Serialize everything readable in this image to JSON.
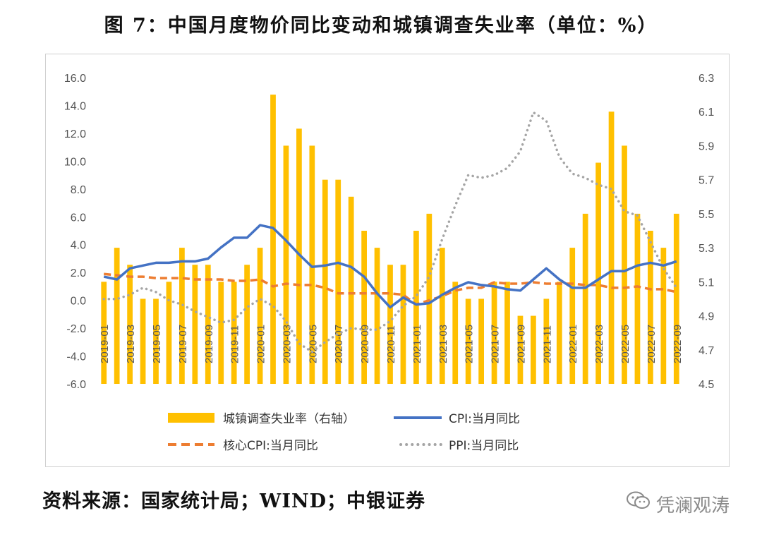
{
  "title": "图 7：中国月度物价同比变动和城镇调查失业率（单位：%）",
  "source": "资料来源：国家统计局；WIND；中银证券",
  "watermark": "凭澜观涛",
  "colors": {
    "unemployment": "#FFC000",
    "cpi": "#4472C4",
    "core_cpi": "#ED7D31",
    "ppi": "#A5A5A5"
  },
  "chart_data": {
    "type": "bar+line",
    "title": "图 7：中国月度物价同比变动和城镇调查失业率（单位：%）",
    "x": [
      "2019-01",
      "2019-02",
      "2019-03",
      "2019-04",
      "2019-05",
      "2019-06",
      "2019-07",
      "2019-08",
      "2019-09",
      "2019-10",
      "2019-11",
      "2019-12",
      "2020-01",
      "2020-02",
      "2020-03",
      "2020-04",
      "2020-05",
      "2020-06",
      "2020-07",
      "2020-08",
      "2020-09",
      "2020-10",
      "2020-11",
      "2020-12",
      "2021-01",
      "2021-02",
      "2021-03",
      "2021-04",
      "2021-05",
      "2021-06",
      "2021-07",
      "2021-08",
      "2021-09",
      "2021-10",
      "2021-11",
      "2021-12",
      "2022-01",
      "2022-02",
      "2022-03",
      "2022-04",
      "2022-05",
      "2022-06",
      "2022-07",
      "2022-08",
      "2022-09"
    ],
    "x_tick_labels": [
      "2019-01",
      "2019-03",
      "2019-05",
      "2019-07",
      "2019-09",
      "2019-11",
      "2020-01",
      "2020-03",
      "2020-05",
      "2020-07",
      "2020-09",
      "2020-11",
      "2021-01",
      "2021-03",
      "2021-05",
      "2021-07",
      "2021-09",
      "2021-11",
      "2022-01",
      "2022-03",
      "2022-05",
      "2022-07",
      "2022-09"
    ],
    "y_left_ticks": [
      "16.0",
      "14.0",
      "12.0",
      "10.0",
      "8.0",
      "6.0",
      "4.0",
      "2.0",
      "0.0",
      "-2.0",
      "-4.0",
      "-6.0"
    ],
    "y_right_ticks": [
      "6.3",
      "6.1",
      "5.9",
      "5.7",
      "5.5",
      "5.3",
      "5.1",
      "4.9",
      "4.7",
      "4.5"
    ],
    "ylim_left": [
      -6,
      16
    ],
    "ylim_right": [
      4.5,
      6.3
    ],
    "grid": false,
    "legend_position": "bottom",
    "series": [
      {
        "name": "城镇调查失业率（右轴）",
        "type": "bar",
        "axis": "right",
        "values": [
          5.1,
          5.3,
          5.2,
          5.0,
          5.0,
          5.1,
          5.3,
          5.2,
          5.2,
          5.1,
          5.1,
          5.2,
          5.3,
          6.2,
          5.9,
          6.0,
          5.9,
          5.7,
          5.7,
          5.6,
          5.4,
          5.3,
          5.2,
          5.2,
          5.4,
          5.5,
          5.3,
          5.1,
          5.0,
          5.0,
          5.1,
          5.1,
          4.9,
          4.9,
          5.0,
          5.1,
          5.3,
          5.5,
          5.8,
          6.1,
          5.9,
          5.5,
          5.4,
          5.3,
          5.5
        ]
      },
      {
        "name": "CPI:当月同比",
        "type": "line",
        "axis": "left",
        "values": [
          1.7,
          1.5,
          2.3,
          2.5,
          2.7,
          2.7,
          2.8,
          2.8,
          3.0,
          3.8,
          4.5,
          4.5,
          5.4,
          5.2,
          4.3,
          3.3,
          2.4,
          2.5,
          2.7,
          2.4,
          1.7,
          0.5,
          -0.5,
          0.2,
          -0.3,
          -0.2,
          0.4,
          0.9,
          1.3,
          1.1,
          1.0,
          0.8,
          0.7,
          1.5,
          2.3,
          1.5,
          0.9,
          0.9,
          1.5,
          2.1,
          2.1,
          2.5,
          2.7,
          2.5,
          2.8
        ]
      },
      {
        "name": "核心CPI:当月同比",
        "type": "line",
        "axis": "left",
        "values": [
          1.9,
          1.8,
          1.7,
          1.7,
          1.6,
          1.6,
          1.6,
          1.5,
          1.5,
          1.5,
          1.4,
          1.4,
          1.5,
          1.0,
          1.2,
          1.1,
          1.1,
          0.9,
          0.5,
          0.5,
          0.5,
          0.5,
          0.5,
          0.4,
          -0.3,
          0.0,
          0.3,
          0.7,
          0.9,
          0.9,
          1.3,
          1.2,
          1.2,
          1.3,
          1.2,
          1.2,
          1.2,
          1.1,
          1.1,
          0.9,
          0.9,
          1.0,
          0.8,
          0.8,
          0.6
        ]
      },
      {
        "name": "PPI:当月同比",
        "type": "line",
        "axis": "left",
        "values": [
          0.1,
          0.1,
          0.4,
          0.9,
          0.6,
          0.0,
          -0.3,
          -0.8,
          -1.2,
          -1.6,
          -1.4,
          -0.5,
          0.1,
          -0.4,
          -1.5,
          -3.1,
          -3.7,
          -3.0,
          -2.4,
          -2.0,
          -2.1,
          -2.1,
          -1.5,
          -0.4,
          0.3,
          1.7,
          4.4,
          6.8,
          9.0,
          8.8,
          9.0,
          9.5,
          10.7,
          13.5,
          12.9,
          10.3,
          9.1,
          8.8,
          8.3,
          8.0,
          6.4,
          6.1,
          4.2,
          2.3,
          0.9
        ]
      }
    ]
  }
}
